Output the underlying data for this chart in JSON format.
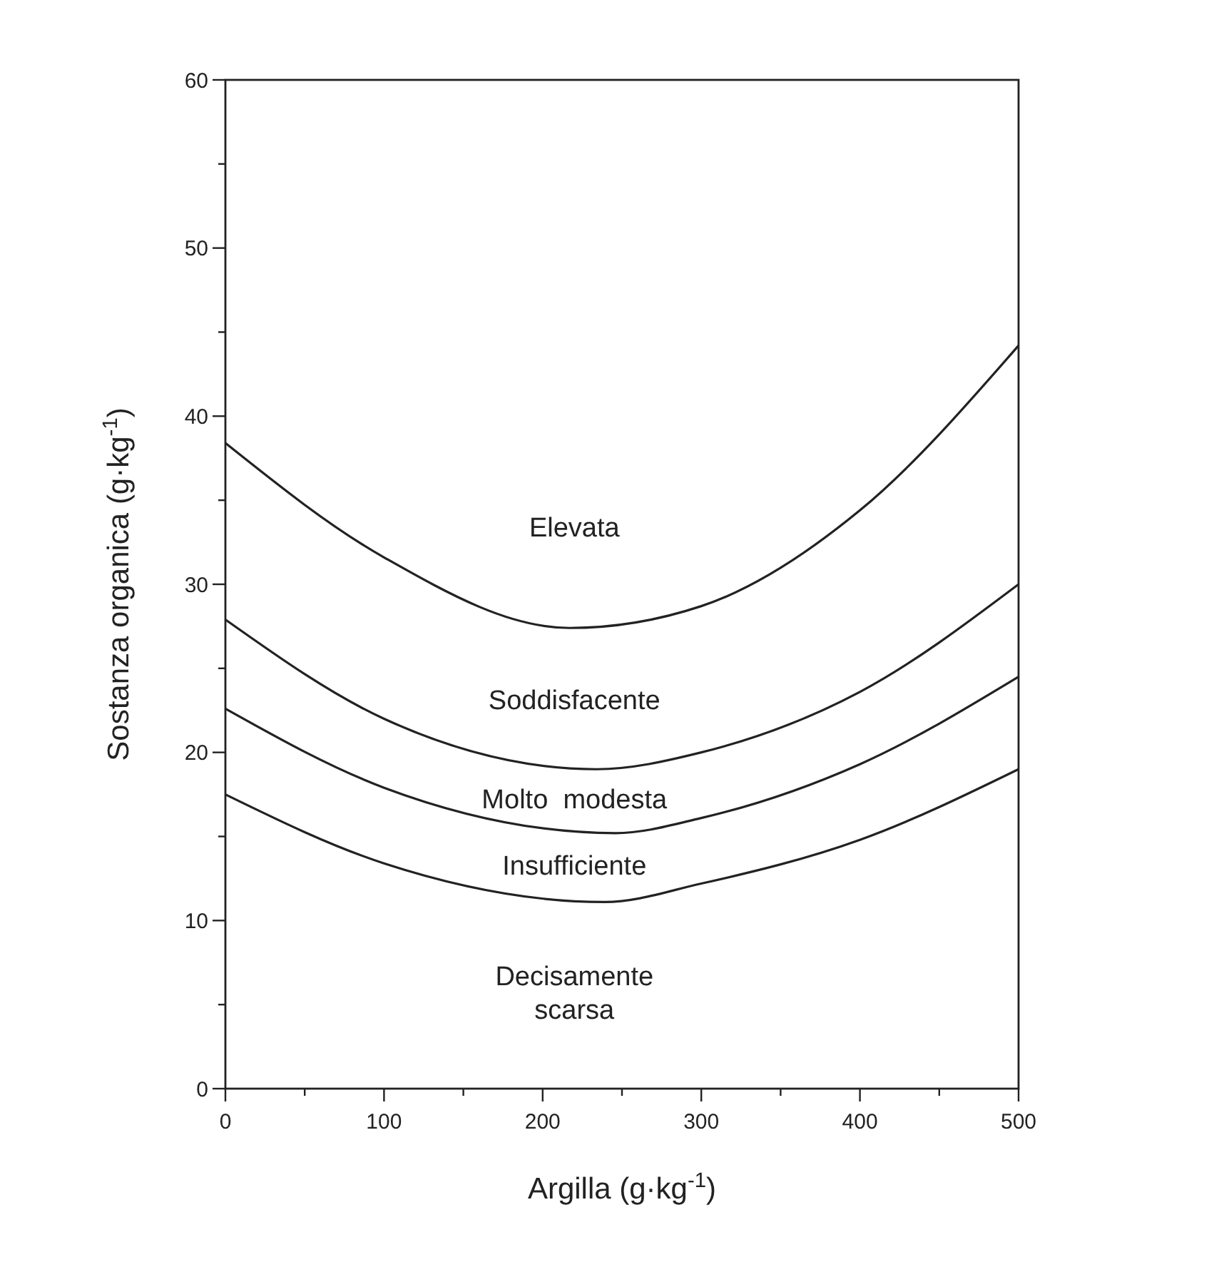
{
  "chart_data": {
    "type": "line",
    "xlabel": "Argilla (g·kg$^{-1}$)",
    "ylabel": "Sostanza organica (g·kg$^{-1}$)",
    "xlim": [
      0,
      500
    ],
    "ylim": [
      0,
      60
    ],
    "xticks": [
      0,
      {
        "value": 50,
        "label": null
      },
      100,
      {
        "value": 150,
        "label": null
      },
      200,
      {
        "value": 250,
        "label": null
      },
      300,
      {
        "value": 350,
        "label": null
      },
      400,
      {
        "value": 450,
        "label": null
      },
      500
    ],
    "yticks": [
      0,
      {
        "value": 5,
        "label": null
      },
      10,
      {
        "value": 15,
        "label": null
      },
      20,
      {
        "value": 25,
        "label": null
      },
      30,
      {
        "value": 35,
        "label": null
      },
      40,
      {
        "value": 45,
        "label": null
      },
      50,
      {
        "value": 55,
        "label": null
      },
      60
    ],
    "grid": false,
    "marker": "none",
    "line_style": "solid",
    "series": [
      {
        "color": "#222222",
        "x": [
          0,
          100,
          217,
          300,
          400,
          500
        ],
        "values": [
          38.4,
          31.6,
          27.4,
          28.7,
          34.4,
          44.2
        ]
      },
      {
        "color": "#222222",
        "x": [
          0,
          100,
          234,
          300,
          400,
          500
        ],
        "values": [
          27.9,
          22.0,
          19.0,
          20.0,
          23.6,
          30.0
        ]
      },
      {
        "color": "#222222",
        "x": [
          0,
          100,
          246,
          300,
          400,
          500
        ],
        "values": [
          22.6,
          17.9,
          15.2,
          16.1,
          19.3,
          24.5
        ]
      },
      {
        "color": "#222222",
        "x": [
          0,
          100,
          239,
          300,
          400,
          500
        ],
        "values": [
          17.5,
          13.4,
          11.1,
          12.2,
          14.8,
          19.0
        ]
      }
    ],
    "annotations": [
      "Elevata",
      "Soddisfacente",
      "Molto  modesta",
      "Insufficiente",
      "Decisamente\nscarsa"
    ]
  }
}
